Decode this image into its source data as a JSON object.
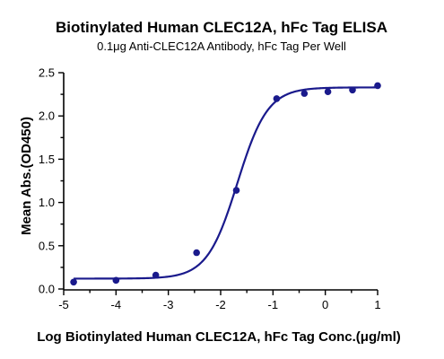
{
  "chart_data": {
    "type": "scatter",
    "title": "Biotinylated Human CLEC12A, hFc Tag ELISA",
    "subtitle": "0.1μg Anti-CLEC12A  Antibody, hFc Tag Per Well",
    "xlabel": "Log Biotinylated Human CLEC12A, hFc Tag Conc.(μg/ml)",
    "ylabel": "Mean Abs.(OD450)",
    "xlim": [
      -5,
      1
    ],
    "ylim": [
      0,
      2.5
    ],
    "x_ticks": [
      "-5",
      "-4",
      "-3",
      "-2",
      "-1",
      "0",
      "1"
    ],
    "y_ticks": [
      "0.0",
      "0.5",
      "1.0",
      "1.5",
      "2.0",
      "2.5"
    ],
    "grid": false,
    "color": "#1a1a8c",
    "series": [
      {
        "x": [
          -4.81,
          -4.0,
          -3.24,
          -2.46,
          -1.7,
          -0.93,
          -0.4,
          0.05,
          0.52,
          1.0
        ],
        "y": [
          0.08,
          0.1,
          0.16,
          0.42,
          1.14,
          2.2,
          2.26,
          2.28,
          2.3,
          2.35
        ]
      }
    ],
    "fit_curve": {
      "bottom": 0.12,
      "top": 2.33,
      "log_ec50": -1.68,
      "hill_slope": 1.5
    }
  }
}
